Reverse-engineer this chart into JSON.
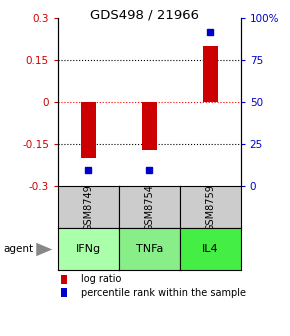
{
  "title": "GDS498 / 21966",
  "samples": [
    "GSM8749",
    "GSM8754",
    "GSM8759"
  ],
  "agents": [
    "IFNg",
    "TNFa",
    "IL4"
  ],
  "log_ratios": [
    -0.2,
    -0.17,
    0.2
  ],
  "percentile_ranks": [
    10,
    10,
    92
  ],
  "bar_color": "#cc0000",
  "dot_color": "#0000cc",
  "left_ylim": [
    -0.3,
    0.3
  ],
  "right_ylim": [
    0,
    100
  ],
  "left_yticks": [
    -0.3,
    -0.15,
    0,
    0.15,
    0.3
  ],
  "right_yticks": [
    0,
    25,
    50,
    75,
    100
  ],
  "right_yticklabels": [
    "0",
    "25",
    "50",
    "75",
    "100%"
  ],
  "hline_black": [
    -0.15,
    0.15
  ],
  "hline_red": 0,
  "agent_colors": [
    "#aaffaa",
    "#88ee88",
    "#44ee44"
  ],
  "sample_bg_color": "#cccccc",
  "agent_label": "agent",
  "legend_log": "log ratio",
  "legend_pct": "percentile rank within the sample",
  "bar_width": 0.25
}
